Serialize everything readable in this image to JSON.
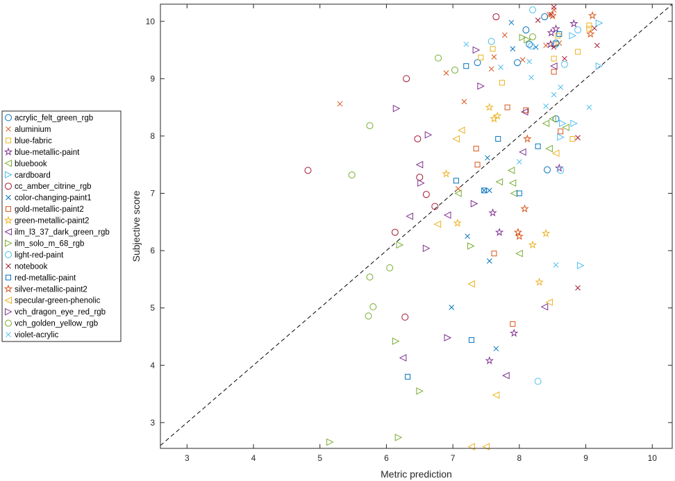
{
  "chart_data": {
    "type": "scatter",
    "title": "",
    "xlabel": "Metric prediction",
    "ylabel": "Subjective score",
    "xlim": [
      2.6,
      10.3
    ],
    "ylim": [
      2.55,
      10.3
    ],
    "xticks": [
      "3",
      "4",
      "5",
      "6",
      "7",
      "8",
      "9",
      "10"
    ],
    "yticks": [
      "3",
      "4",
      "5",
      "6",
      "7",
      "8",
      "9",
      "10"
    ],
    "grid": false,
    "legend_position": "outside-left",
    "reference_line": "dashed identity line y = x",
    "series": [
      {
        "name": "acrylic_felt_green_rgb",
        "marker": "circle",
        "color": "#0072BD",
        "points": [
          [
            7.37,
            9.28
          ],
          [
            7.97,
            9.28
          ],
          [
            8.1,
            9.85
          ],
          [
            8.15,
            9.6
          ],
          [
            8.38,
            10.08
          ],
          [
            8.55,
            9.62
          ],
          [
            8.55,
            8.3
          ],
          [
            8.42,
            7.41
          ]
        ]
      },
      {
        "name": "aluminium",
        "marker": "x",
        "color": "#D95319",
        "points": [
          [
            5.3,
            8.56
          ],
          [
            6.9,
            9.1
          ],
          [
            7.17,
            8.6
          ],
          [
            7.58,
            9.17
          ],
          [
            7.62,
            9.38
          ],
          [
            7.78,
            9.76
          ],
          [
            8.05,
            9.33
          ],
          [
            8.4,
            9.58
          ],
          [
            8.45,
            10.12
          ],
          [
            8.52,
            10.2
          ],
          [
            7.08,
            7.08
          ],
          [
            8.6,
            9.62
          ]
        ]
      },
      {
        "name": "blue-fabric",
        "marker": "square",
        "color": "#EDB120",
        "points": [
          [
            7.42,
            9.37
          ],
          [
            7.6,
            9.52
          ],
          [
            7.74,
            8.93
          ],
          [
            8.52,
            9.35
          ],
          [
            8.52,
            9.6
          ],
          [
            8.88,
            9.47
          ],
          [
            9.05,
            9.87
          ],
          [
            9.05,
            9.93
          ],
          [
            8.8,
            7.95
          ],
          [
            8.58,
            9.75
          ]
        ]
      },
      {
        "name": "blue-metallic-paint",
        "marker": "star",
        "color": "#7E2F8E",
        "points": [
          [
            7.55,
            4.08
          ],
          [
            7.6,
            6.66
          ],
          [
            7.7,
            6.32
          ],
          [
            7.92,
            4.56
          ],
          [
            8.6,
            7.44
          ],
          [
            8.47,
            9.6
          ],
          [
            8.55,
            9.87
          ],
          [
            8.48,
            9.8
          ],
          [
            8.82,
            9.96
          ]
        ]
      },
      {
        "name": "bluebook",
        "marker": "triangle-left",
        "color": "#77AC30",
        "points": [
          [
            7.08,
            7.0
          ],
          [
            7.7,
            7.2
          ],
          [
            7.88,
            7.4
          ],
          [
            7.92,
            7.0
          ],
          [
            7.9,
            7.18
          ],
          [
            8.0,
            5.95
          ],
          [
            8.4,
            8.22
          ],
          [
            8.45,
            7.78
          ],
          [
            8.7,
            8.15
          ],
          [
            8.5,
            8.3
          ]
        ]
      },
      {
        "name": "cardboard",
        "marker": "triangle-right",
        "color": "#4DBEEE",
        "points": [
          [
            8.62,
            7.98
          ],
          [
            8.65,
            8.22
          ],
          [
            8.8,
            9.75
          ],
          [
            8.82,
            8.22
          ],
          [
            8.92,
            5.74
          ],
          [
            9.2,
            9.97
          ],
          [
            9.2,
            9.22
          ]
        ]
      },
      {
        "name": "cc_amber_citrine_rgb",
        "marker": "circle",
        "color": "#A2142F",
        "points": [
          [
            4.82,
            7.4
          ],
          [
            6.3,
            9.0
          ],
          [
            6.47,
            7.95
          ],
          [
            6.5,
            7.28
          ],
          [
            6.6,
            6.98
          ],
          [
            6.73,
            6.77
          ],
          [
            6.13,
            6.32
          ],
          [
            6.28,
            4.84
          ],
          [
            7.65,
            10.08
          ]
        ]
      },
      {
        "name": "color-changing-paint1",
        "marker": "x",
        "color": "#0072BD",
        "points": [
          [
            6.98,
            5.01
          ],
          [
            7.22,
            6.25
          ],
          [
            7.47,
            7.05
          ],
          [
            7.52,
            7.62
          ],
          [
            7.55,
            5.82
          ],
          [
            7.65,
            4.29
          ],
          [
            7.88,
            9.98
          ],
          [
            7.9,
            9.52
          ],
          [
            8.25,
            9.55
          ],
          [
            7.55,
            7.05
          ]
        ]
      },
      {
        "name": "gold-metallic-paint2",
        "marker": "square",
        "color": "#D95319",
        "points": [
          [
            7.35,
            7.78
          ],
          [
            7.37,
            7.5
          ],
          [
            7.62,
            5.95
          ],
          [
            7.82,
            8.5
          ],
          [
            7.9,
            4.72
          ],
          [
            8.1,
            8.45
          ],
          [
            8.52,
            9.12
          ],
          [
            8.62,
            8.08
          ]
        ]
      },
      {
        "name": "green-metallic-paint2",
        "marker": "star",
        "color": "#EDB120",
        "points": [
          [
            6.9,
            7.34
          ],
          [
            7.07,
            6.48
          ],
          [
            7.55,
            8.5
          ],
          [
            7.62,
            8.3
          ],
          [
            7.67,
            8.35
          ],
          [
            8.2,
            6.1
          ],
          [
            8.3,
            5.45
          ],
          [
            8.4,
            6.3
          ]
        ]
      },
      {
        "name": "ilm_l3_37_dark_green_rgb",
        "marker": "triangle-left",
        "color": "#7E2F8E",
        "points": [
          [
            6.25,
            4.13
          ],
          [
            6.35,
            6.6
          ],
          [
            6.5,
            7.5
          ],
          [
            6.92,
            6.62
          ],
          [
            7.8,
            3.82
          ],
          [
            8.05,
            7.72
          ],
          [
            8.08,
            8.42
          ],
          [
            8.38,
            5.02
          ],
          [
            8.52,
            9.22
          ]
        ]
      },
      {
        "name": "ilm_solo_m_68_rgb",
        "marker": "triangle-right",
        "color": "#77AC30",
        "points": [
          [
            5.15,
            2.66
          ],
          [
            6.18,
            2.74
          ],
          [
            6.14,
            4.42
          ],
          [
            6.2,
            6.1
          ],
          [
            6.5,
            3.55
          ],
          [
            7.27,
            6.08
          ],
          [
            8.05,
            9.72
          ],
          [
            8.12,
            9.68
          ]
        ]
      },
      {
        "name": "light-red-paint",
        "marker": "circle",
        "color": "#4DBEEE",
        "points": [
          [
            7.58,
            9.65
          ],
          [
            8.18,
            9.57
          ],
          [
            8.2,
            10.2
          ],
          [
            8.55,
            9.6
          ],
          [
            8.62,
            7.4
          ],
          [
            8.68,
            9.25
          ],
          [
            8.88,
            9.85
          ],
          [
            8.28,
            3.72
          ]
        ]
      },
      {
        "name": "notebook",
        "marker": "x",
        "color": "#A2142F",
        "points": [
          [
            8.28,
            10.02
          ],
          [
            8.48,
            10.12
          ],
          [
            8.52,
            10.25
          ],
          [
            8.52,
            9.55
          ],
          [
            8.68,
            9.35
          ],
          [
            8.88,
            7.97
          ],
          [
            8.88,
            5.35
          ],
          [
            9.13,
            9.88
          ],
          [
            9.17,
            9.58
          ]
        ]
      },
      {
        "name": "red-metallic-paint",
        "marker": "square",
        "color": "#0072BD",
        "points": [
          [
            6.32,
            3.8
          ],
          [
            7.05,
            7.22
          ],
          [
            7.2,
            9.22
          ],
          [
            7.28,
            4.44
          ],
          [
            7.47,
            7.05
          ],
          [
            7.68,
            7.95
          ],
          [
            8.0,
            7.0
          ],
          [
            8.28,
            7.82
          ],
          [
            8.6,
            9.78
          ]
        ]
      },
      {
        "name": "silver-metallic-paint2",
        "marker": "star",
        "color": "#D95319",
        "points": [
          [
            7.98,
            6.32
          ],
          [
            8.0,
            6.25
          ],
          [
            8.08,
            6.73
          ],
          [
            8.12,
            7.95
          ],
          [
            8.5,
            10.1
          ],
          [
            9.07,
            9.78
          ],
          [
            9.1,
            10.1
          ]
        ]
      },
      {
        "name": "specular-green-phenolic",
        "marker": "triangle-left",
        "color": "#EDB120",
        "points": [
          [
            6.77,
            6.46
          ],
          [
            7.05,
            7.95
          ],
          [
            7.13,
            8.1
          ],
          [
            7.28,
            5.42
          ],
          [
            7.28,
            2.58
          ],
          [
            7.5,
            2.58
          ],
          [
            7.65,
            3.48
          ],
          [
            8.45,
            5.1
          ],
          [
            8.55,
            7.7
          ]
        ]
      },
      {
        "name": "vch_dragon_eye_red_rgb",
        "marker": "triangle-right",
        "color": "#7E2F8E",
        "points": [
          [
            6.15,
            8.48
          ],
          [
            6.63,
            8.02
          ],
          [
            6.52,
            7.18
          ],
          [
            6.6,
            6.04
          ],
          [
            6.92,
            4.48
          ],
          [
            7.32,
            6.82
          ],
          [
            7.35,
            9.5
          ],
          [
            7.42,
            8.87
          ]
        ]
      },
      {
        "name": "vch_golden_yellow_rgb",
        "marker": "circle",
        "color": "#77AC30",
        "points": [
          [
            5.48,
            7.32
          ],
          [
            5.75,
            8.18
          ],
          [
            5.75,
            5.54
          ],
          [
            5.73,
            4.86
          ],
          [
            5.8,
            5.02
          ],
          [
            6.05,
            5.7
          ],
          [
            6.78,
            9.36
          ],
          [
            7.03,
            9.15
          ],
          [
            8.2,
            9.73
          ]
        ]
      },
      {
        "name": "violet-acrylic",
        "marker": "x",
        "color": "#4DBEEE",
        "points": [
          [
            7.2,
            9.6
          ],
          [
            7.72,
            9.2
          ],
          [
            8.0,
            7.55
          ],
          [
            8.18,
            9.02
          ],
          [
            8.4,
            8.52
          ],
          [
            8.52,
            8.72
          ],
          [
            8.55,
            5.75
          ],
          [
            8.62,
            8.85
          ],
          [
            9.05,
            8.5
          ],
          [
            8.15,
            9.3
          ]
        ]
      }
    ]
  }
}
